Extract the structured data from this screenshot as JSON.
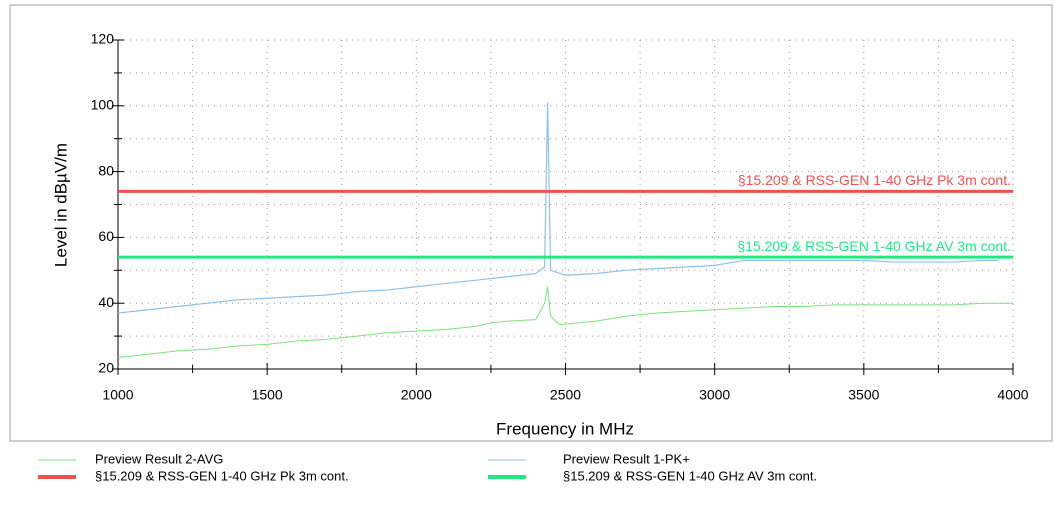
{
  "chart_data": {
    "type": "line",
    "xlabel": "Frequency in MHz",
    "ylabel": "Level in dBµV/m",
    "xlim": [
      1000,
      4000
    ],
    "ylim": [
      20,
      120
    ],
    "xticks": [
      1000,
      1500,
      2000,
      2500,
      3000,
      3500,
      4000
    ],
    "yticks": [
      20,
      40,
      60,
      80,
      100,
      120
    ],
    "xticks_minor": [
      1250,
      1750,
      2250,
      2750,
      3250,
      3750
    ],
    "yticks_minor": [
      30,
      50,
      70,
      90,
      110
    ],
    "grid": true,
    "series": [
      {
        "name": "Preview Result 2-AVG",
        "color": "#7ee07e",
        "x": [
          1000,
          1100,
          1200,
          1300,
          1400,
          1500,
          1600,
          1700,
          1800,
          1900,
          2000,
          2100,
          2200,
          2250,
          2300,
          2400,
          2430,
          2440,
          2450,
          2480,
          2600,
          2700,
          2800,
          2900,
          3000,
          3100,
          3200,
          3300,
          3400,
          3500,
          3600,
          3700,
          3800,
          3900,
          4000
        ],
        "values": [
          23.5,
          24.5,
          25.5,
          26,
          27,
          27.5,
          28.5,
          29,
          30,
          31,
          31.5,
          32,
          33,
          34,
          34.5,
          35,
          40,
          45,
          36,
          33.5,
          34.5,
          36,
          37,
          37.5,
          38,
          38.5,
          39,
          39,
          39.5,
          39.5,
          39.5,
          39.5,
          39.5,
          40,
          40
        ]
      },
      {
        "name": "Preview Result 1-PK+",
        "color": "#8ec2e8",
        "x": [
          1000,
          1100,
          1200,
          1300,
          1400,
          1500,
          1600,
          1700,
          1800,
          1900,
          2000,
          2100,
          2200,
          2300,
          2400,
          2430,
          2440,
          2450,
          2500,
          2600,
          2700,
          2800,
          2900,
          3000,
          3100,
          3200,
          3300,
          3400,
          3500,
          3600,
          3700,
          3800,
          3900,
          3950
        ],
        "values": [
          37,
          38,
          39,
          40,
          41,
          41.5,
          42,
          42.5,
          43.5,
          44,
          45,
          46,
          47,
          48,
          49,
          51,
          101,
          50,
          48.5,
          49,
          50,
          50.5,
          51,
          51.5,
          53,
          53,
          53,
          53,
          53,
          52.5,
          52.5,
          52.5,
          53,
          53
        ]
      },
      {
        "name": "§15.209 & RSS-GEN 1-40 GHz Pk 3m cont.",
        "color": "#f05050",
        "x": [
          1000,
          4000
        ],
        "values": [
          74,
          74
        ]
      },
      {
        "name": "§15.209 & RSS-GEN 1-40 GHz AV 3m cont.",
        "color": "#20e882",
        "x": [
          1000,
          4000
        ],
        "values": [
          54,
          54
        ]
      }
    ]
  }
}
